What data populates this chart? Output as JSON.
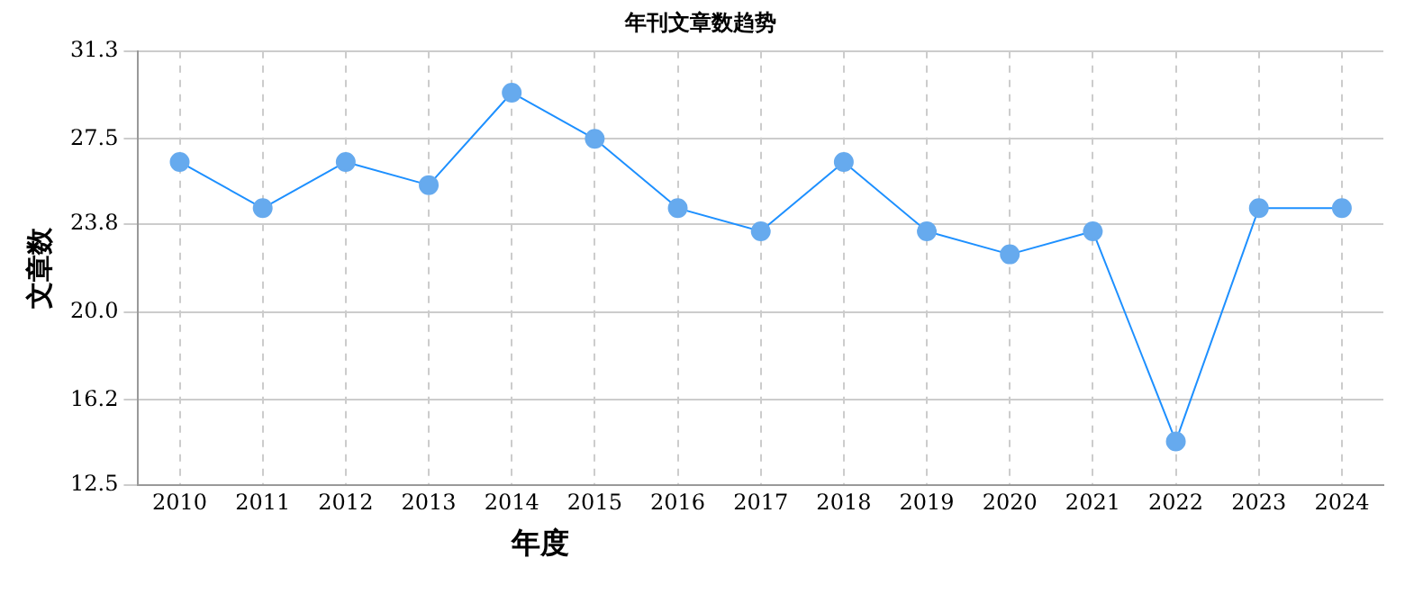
{
  "chart_data": {
    "type": "line",
    "title": "年刊文章数趋势",
    "xlabel": "年度",
    "ylabel": "文章数",
    "categories": [
      "2010",
      "2011",
      "2012",
      "2013",
      "2014",
      "2015",
      "2016",
      "2017",
      "2018",
      "2019",
      "2020",
      "2021",
      "2022",
      "2023",
      "2024"
    ],
    "series": [
      {
        "color": "#1e90ff",
        "values": [
          26.5,
          24.5,
          26.5,
          25.5,
          29.5,
          27.5,
          24.5,
          23.5,
          26.5,
          23.5,
          22.5,
          23.5,
          14.4,
          24.5,
          24.5
        ]
      }
    ],
    "ylim": [
      12.5,
      31.3
    ],
    "yticks": [
      12.5,
      16.2,
      {
        "value": 20,
        "label": "20.0"
      },
      23.8,
      27.5,
      31.3
    ],
    "grid": true,
    "legend": false,
    "marker": "circle",
    "line_style": "solid"
  }
}
